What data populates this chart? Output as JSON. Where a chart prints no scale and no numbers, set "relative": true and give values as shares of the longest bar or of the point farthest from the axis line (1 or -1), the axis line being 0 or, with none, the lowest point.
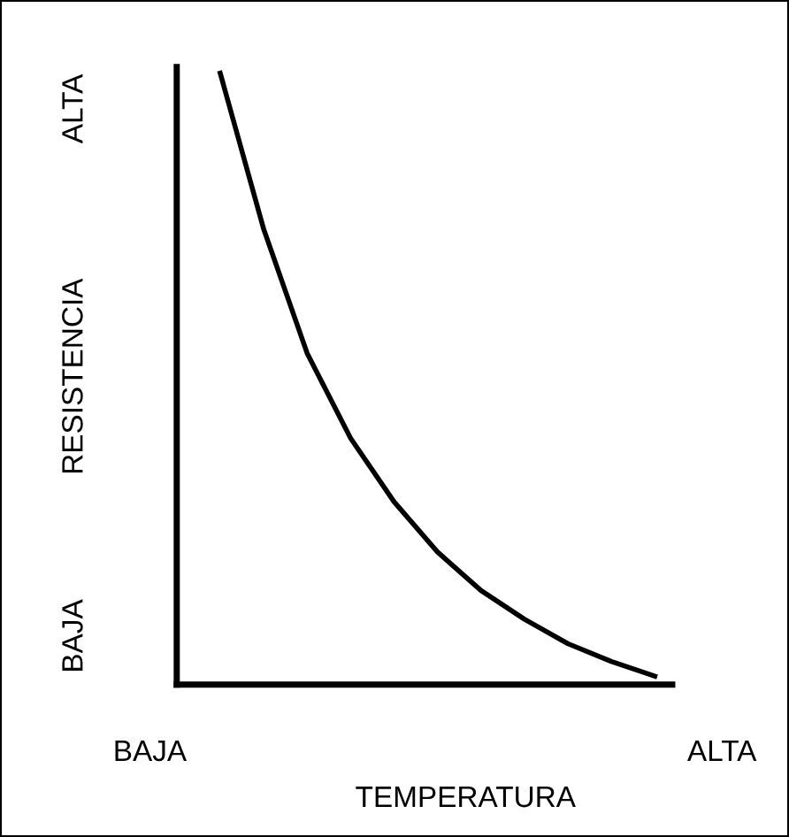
{
  "chart_data": {
    "type": "line",
    "relative": true,
    "xlabel": "TEMPERATURA",
    "ylabel": "RESISTENCIA",
    "annotations": [
      "BAJA",
      "ALTA",
      "BAJA",
      "ALTA"
    ],
    "categories": [
      null,
      null,
      null,
      null,
      null,
      null,
      null,
      null,
      null,
      null,
      null
    ],
    "series": [
      {
        "color": "#000000",
        "values": [
          1,
          0.745,
          0.542,
          0.403,
          0.299,
          0.217,
          0.154,
          0.107,
          0.067,
          0.038,
          0.014
        ]
      }
    ],
    "legend": false,
    "marker": "none",
    "line_style": "solid"
  }
}
